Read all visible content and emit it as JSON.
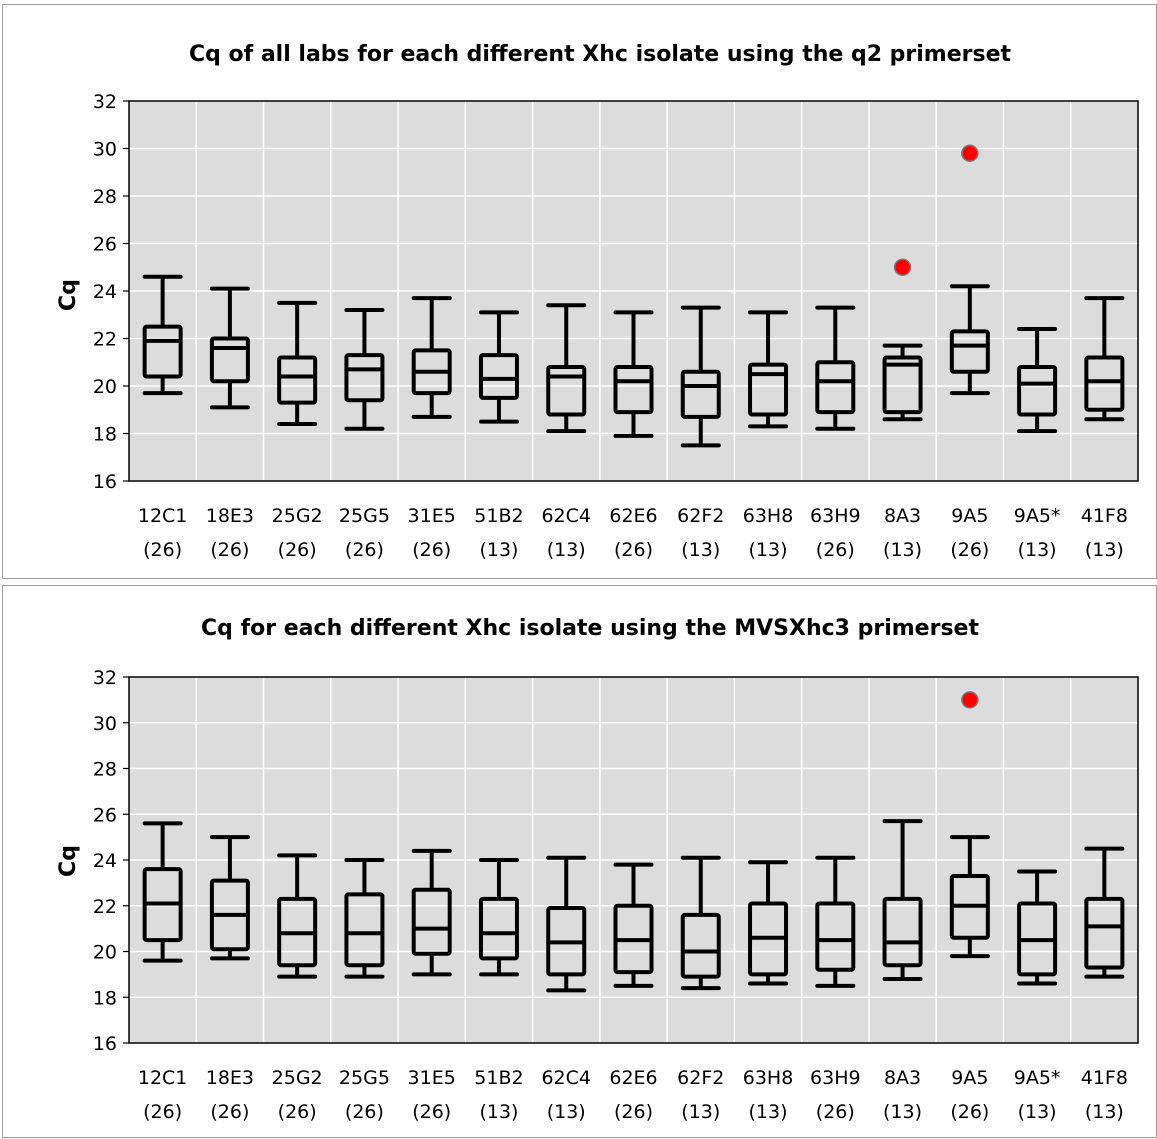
{
  "chart_data": [
    {
      "type": "boxplot",
      "title": "Cq of all labs for each different Xhc isolate using the q2 primerset",
      "ylabel": "Cq",
      "xlabel": "",
      "ylim": [
        16,
        32
      ],
      "yticks": [
        16,
        18,
        20,
        22,
        24,
        26,
        28,
        30,
        32
      ],
      "grid": true,
      "categories": [
        {
          "name": "12C1",
          "n": "(26)"
        },
        {
          "name": "18E3",
          "n": "(26)"
        },
        {
          "name": "25G2",
          "n": "(26)"
        },
        {
          "name": "25G5",
          "n": "(26)"
        },
        {
          "name": "31E5",
          "n": "(26)"
        },
        {
          "name": "51B2",
          "n": "(13)"
        },
        {
          "name": "62C4",
          "n": "(13)"
        },
        {
          "name": "62E6",
          "n": "(26)"
        },
        {
          "name": "62F2",
          "n": "(13)"
        },
        {
          "name": "63H8",
          "n": "(13)"
        },
        {
          "name": "63H9",
          "n": "(26)"
        },
        {
          "name": "8A3",
          "n": "(13)"
        },
        {
          "name": "9A5",
          "n": "(26)"
        },
        {
          "name": "9A5*",
          "n": "(13)"
        },
        {
          "name": "41F8",
          "n": "(13)"
        }
      ],
      "boxes": [
        {
          "min": 19.7,
          "q1": 20.4,
          "median": 21.9,
          "q3": 22.5,
          "max": 24.6
        },
        {
          "min": 19.1,
          "q1": 20.2,
          "median": 21.6,
          "q3": 22.0,
          "max": 24.1
        },
        {
          "min": 18.4,
          "q1": 19.3,
          "median": 20.4,
          "q3": 21.2,
          "max": 23.5
        },
        {
          "min": 18.2,
          "q1": 19.4,
          "median": 20.7,
          "q3": 21.3,
          "max": 23.2
        },
        {
          "min": 18.7,
          "q1": 19.7,
          "median": 20.6,
          "q3": 21.5,
          "max": 23.7
        },
        {
          "min": 18.5,
          "q1": 19.5,
          "median": 20.3,
          "q3": 21.3,
          "max": 23.1
        },
        {
          "min": 18.1,
          "q1": 18.8,
          "median": 20.4,
          "q3": 20.8,
          "max": 23.4
        },
        {
          "min": 17.9,
          "q1": 18.9,
          "median": 20.2,
          "q3": 20.8,
          "max": 23.1
        },
        {
          "min": 17.5,
          "q1": 18.7,
          "median": 20.0,
          "q3": 20.6,
          "max": 23.3
        },
        {
          "min": 18.3,
          "q1": 18.8,
          "median": 20.5,
          "q3": 20.9,
          "max": 23.1
        },
        {
          "min": 18.2,
          "q1": 18.9,
          "median": 20.2,
          "q3": 21.0,
          "max": 23.3
        },
        {
          "min": 18.6,
          "q1": 18.9,
          "median": 20.9,
          "q3": 21.2,
          "max": 21.7
        },
        {
          "min": 19.7,
          "q1": 20.6,
          "median": 21.7,
          "q3": 22.3,
          "max": 24.2
        },
        {
          "min": 18.1,
          "q1": 18.8,
          "median": 20.1,
          "q3": 20.8,
          "max": 22.4
        },
        {
          "min": 18.6,
          "q1": 19.0,
          "median": 20.2,
          "q3": 21.2,
          "max": 23.7
        }
      ],
      "outliers": [
        {
          "category": "8A3",
          "value": 25.0
        },
        {
          "category": "9A5",
          "value": 29.8
        }
      ],
      "colors": {
        "plot_bg": "#dcdcdc",
        "box": "#000000",
        "outlier": "#ff0000",
        "grid": "#ffffff"
      }
    },
    {
      "type": "boxplot",
      "title": "Cq for each different Xhc isolate using the MVSXhc3 primerset",
      "ylabel": "Cq",
      "xlabel": "",
      "ylim": [
        16,
        32
      ],
      "yticks": [
        16,
        18,
        20,
        22,
        24,
        26,
        28,
        30,
        32
      ],
      "grid": true,
      "categories": [
        {
          "name": "12C1",
          "n": "(26)"
        },
        {
          "name": "18E3",
          "n": "(26)"
        },
        {
          "name": "25G2",
          "n": "(26)"
        },
        {
          "name": "25G5",
          "n": "(26)"
        },
        {
          "name": "31E5",
          "n": "(26)"
        },
        {
          "name": "51B2",
          "n": "(13)"
        },
        {
          "name": "62C4",
          "n": "(13)"
        },
        {
          "name": "62E6",
          "n": "(26)"
        },
        {
          "name": "62F2",
          "n": "(13)"
        },
        {
          "name": "63H8",
          "n": "(13)"
        },
        {
          "name": "63H9",
          "n": "(26)"
        },
        {
          "name": "8A3",
          "n": "(13)"
        },
        {
          "name": "9A5",
          "n": "(26)"
        },
        {
          "name": "9A5*",
          "n": "(13)"
        },
        {
          "name": "41F8",
          "n": "(13)"
        }
      ],
      "boxes": [
        {
          "min": 19.6,
          "q1": 20.5,
          "median": 22.1,
          "q3": 23.6,
          "max": 25.6
        },
        {
          "min": 19.7,
          "q1": 20.1,
          "median": 21.6,
          "q3": 23.1,
          "max": 25.0
        },
        {
          "min": 18.9,
          "q1": 19.4,
          "median": 20.8,
          "q3": 22.3,
          "max": 24.2
        },
        {
          "min": 18.9,
          "q1": 19.4,
          "median": 20.8,
          "q3": 22.5,
          "max": 24.0
        },
        {
          "min": 19.0,
          "q1": 19.9,
          "median": 21.0,
          "q3": 22.7,
          "max": 24.4
        },
        {
          "min": 19.0,
          "q1": 19.7,
          "median": 20.8,
          "q3": 22.3,
          "max": 24.0
        },
        {
          "min": 18.3,
          "q1": 19.0,
          "median": 20.4,
          "q3": 21.9,
          "max": 24.1
        },
        {
          "min": 18.5,
          "q1": 19.1,
          "median": 20.5,
          "q3": 22.0,
          "max": 23.8
        },
        {
          "min": 18.4,
          "q1": 18.9,
          "median": 20.0,
          "q3": 21.6,
          "max": 24.1
        },
        {
          "min": 18.6,
          "q1": 19.0,
          "median": 20.6,
          "q3": 22.1,
          "max": 23.9
        },
        {
          "min": 18.5,
          "q1": 19.2,
          "median": 20.5,
          "q3": 22.1,
          "max": 24.1
        },
        {
          "min": 18.8,
          "q1": 19.4,
          "median": 20.4,
          "q3": 22.3,
          "max": 25.7
        },
        {
          "min": 19.8,
          "q1": 20.6,
          "median": 22.0,
          "q3": 23.3,
          "max": 25.0
        },
        {
          "min": 18.6,
          "q1": 19.0,
          "median": 20.5,
          "q3": 22.1,
          "max": 23.5
        },
        {
          "min": 18.9,
          "q1": 19.3,
          "median": 21.1,
          "q3": 22.3,
          "max": 24.5
        }
      ],
      "outliers": [
        {
          "category": "9A5",
          "value": 31.0
        }
      ],
      "colors": {
        "plot_bg": "#dcdcdc",
        "box": "#000000",
        "outlier": "#ff0000",
        "grid": "#ffffff"
      }
    }
  ]
}
